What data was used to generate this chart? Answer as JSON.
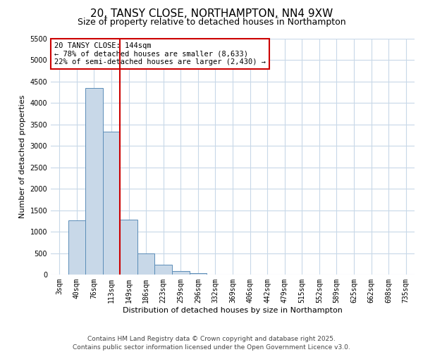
{
  "title": "20, TANSY CLOSE, NORTHAMPTON, NN4 9XW",
  "subtitle": "Size of property relative to detached houses in Northampton",
  "xlabel": "Distribution of detached houses by size in Northampton",
  "ylabel": "Number of detached properties",
  "bar_labels": [
    "3sqm",
    "40sqm",
    "76sqm",
    "113sqm",
    "149sqm",
    "186sqm",
    "223sqm",
    "259sqm",
    "296sqm",
    "332sqm",
    "369sqm",
    "406sqm",
    "442sqm",
    "479sqm",
    "515sqm",
    "552sqm",
    "589sqm",
    "625sqm",
    "662sqm",
    "698sqm",
    "735sqm"
  ],
  "bar_values": [
    0,
    1270,
    4350,
    3330,
    1280,
    500,
    230,
    80,
    30,
    0,
    0,
    0,
    0,
    0,
    0,
    0,
    0,
    0,
    0,
    0,
    0
  ],
  "bar_color": "#c8d8e8",
  "bar_edge_color": "#5b8db8",
  "vline_color": "#cc0000",
  "ylim": [
    0,
    5500
  ],
  "yticks": [
    0,
    500,
    1000,
    1500,
    2000,
    2500,
    3000,
    3500,
    4000,
    4500,
    5000,
    5500
  ],
  "annotation_title": "20 TANSY CLOSE: 144sqm",
  "annotation_line2": "← 78% of detached houses are smaller (8,633)",
  "annotation_line3": "22% of semi-detached houses are larger (2,430) →",
  "annotation_box_color": "#cc0000",
  "footer_line1": "Contains HM Land Registry data © Crown copyright and database right 2025.",
  "footer_line2": "Contains public sector information licensed under the Open Government Licence v3.0.",
  "bg_color": "#ffffff",
  "grid_color": "#c8d8e8",
  "title_fontsize": 11,
  "subtitle_fontsize": 9,
  "axis_label_fontsize": 8,
  "tick_fontsize": 7,
  "annotation_fontsize": 7.5,
  "footer_fontsize": 6.5
}
